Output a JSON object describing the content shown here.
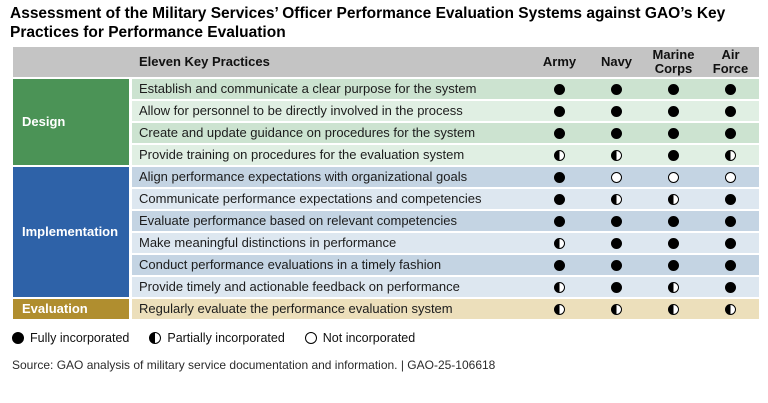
{
  "title": "Assessment of the Military Services’ Officer Performance Evaluation Systems against GAO’s Key Practices for Performance Evaluation",
  "chart_data": {
    "type": "table",
    "header": {
      "practices": "Eleven Key Practices",
      "services": [
        "Army",
        "Navy",
        "Marine Corps",
        "Air Force"
      ]
    },
    "groups": [
      {
        "label": "Design",
        "color": "#4b9356",
        "row_span": 4
      },
      {
        "label": "Implementation",
        "color": "#2e62a8",
        "row_span": 6
      },
      {
        "label": "Evaluation",
        "color": "#b08e2f",
        "row_span": 1
      }
    ],
    "rows": [
      {
        "group": "Design",
        "practice": "Establish and communicate a clear purpose for the system",
        "ratings": [
          "full",
          "full",
          "full",
          "full"
        ]
      },
      {
        "group": "Design",
        "practice": "Allow for personnel to be directly involved in the process",
        "ratings": [
          "full",
          "full",
          "full",
          "full"
        ]
      },
      {
        "group": "Design",
        "practice": "Create and update guidance on procedures for the system",
        "ratings": [
          "full",
          "full",
          "full",
          "full"
        ]
      },
      {
        "group": "Design",
        "practice": "Provide training on procedures for the evaluation system",
        "ratings": [
          "half",
          "half",
          "full",
          "half"
        ]
      },
      {
        "group": "Implementation",
        "practice": "Align performance expectations with organizational goals",
        "ratings": [
          "full",
          "none",
          "none",
          "none"
        ]
      },
      {
        "group": "Implementation",
        "practice": "Communicate performance expectations and competencies",
        "ratings": [
          "full",
          "half",
          "half",
          "full"
        ]
      },
      {
        "group": "Implementation",
        "practice": "Evaluate performance based on relevant competencies",
        "ratings": [
          "full",
          "full",
          "full",
          "full"
        ]
      },
      {
        "group": "Implementation",
        "practice": "Make meaningful distinctions in performance",
        "ratings": [
          "half",
          "full",
          "full",
          "full"
        ]
      },
      {
        "group": "Implementation",
        "practice": "Conduct performance evaluations in a timely fashion",
        "ratings": [
          "full",
          "full",
          "full",
          "full"
        ]
      },
      {
        "group": "Implementation",
        "practice": "Provide timely and actionable feedback on performance",
        "ratings": [
          "half",
          "full",
          "half",
          "full"
        ]
      },
      {
        "group": "Evaluation",
        "practice": "Regularly evaluate the performance evaluation system",
        "ratings": [
          "half",
          "half",
          "half",
          "half"
        ]
      }
    ],
    "legend": [
      {
        "symbol": "full",
        "label": "Fully incorporated"
      },
      {
        "symbol": "half",
        "label": "Partially incorporated"
      },
      {
        "symbol": "none",
        "label": "Not incorporated"
      }
    ]
  },
  "source": "Source: GAO analysis of military service documentation and information.  |  GAO-25-106618",
  "colors": {
    "header_bg": "#c4c4c4",
    "design_green": "#4b9356",
    "design_row_dark": "#cce3d0",
    "design_row_light": "#e0efe3",
    "implementation_blue": "#2e62a8",
    "implementation_row_dark": "#c4d4e3",
    "implementation_row_light": "#dde7f0",
    "evaluation_gold": "#b08e2f",
    "evaluation_row": "#ecdfbb"
  }
}
